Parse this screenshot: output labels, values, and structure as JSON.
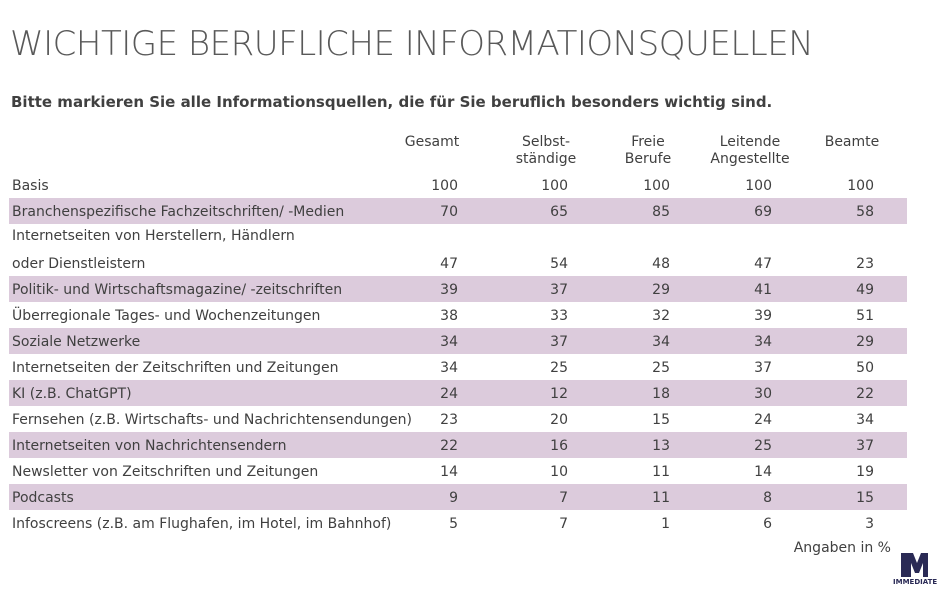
{
  "title": "WICHTIGE BERUFLICHE INFORMATIONSQUELLEN",
  "subtitle": "Bitte markieren Sie alle Informationsquellen, die für Sie beruflich besonders wichtig sind.",
  "footnote": "Angaben in %",
  "logo_text": "IMMEDIATE",
  "colors": {
    "shaded_row": "#dccbdc",
    "text": "#404040",
    "logo": "#2a2a55"
  },
  "chart_data": {
    "type": "table",
    "columns": [
      "Gesamt",
      "Selbst-\nständige",
      "Freie\nBerufe",
      "Leitende\nAngestellte",
      "Beamte"
    ],
    "rows": [
      {
        "label": "Basis",
        "values": [
          100,
          100,
          100,
          100,
          100
        ],
        "shaded": false
      },
      {
        "label": "Branchenspezifische Fachzeitschriften/ -Medien",
        "values": [
          70,
          65,
          85,
          69,
          58
        ],
        "shaded": true
      },
      {
        "label": "oder Dienstleistern",
        "label_line1": "Internetseiten von Herstellern, Händlern",
        "values": [
          47,
          54,
          48,
          47,
          23
        ],
        "shaded": false
      },
      {
        "label": "Politik- und Wirtschaftsmagazine/ -zeitschriften",
        "values": [
          39,
          37,
          29,
          41,
          49
        ],
        "shaded": true
      },
      {
        "label": "Überregionale Tages- und Wochenzeitungen",
        "values": [
          38,
          33,
          32,
          39,
          51
        ],
        "shaded": false
      },
      {
        "label": "Soziale Netzwerke",
        "values": [
          34,
          37,
          34,
          34,
          29
        ],
        "shaded": true
      },
      {
        "label": "Internetseiten der Zeitschriften und Zeitungen",
        "values": [
          34,
          25,
          25,
          37,
          50
        ],
        "shaded": false
      },
      {
        "label": "KI (z.B. ChatGPT)",
        "values": [
          24,
          12,
          18,
          30,
          22
        ],
        "shaded": true
      },
      {
        "label": "Fernsehen (z.B. Wirtschafts- und Nachrichtensendungen)",
        "values": [
          23,
          20,
          15,
          24,
          34
        ],
        "shaded": false
      },
      {
        "label": "Internetseiten von Nachrichtensendern",
        "values": [
          22,
          16,
          13,
          25,
          37
        ],
        "shaded": true
      },
      {
        "label": "Newsletter von Zeitschriften und Zeitungen",
        "values": [
          14,
          10,
          11,
          14,
          19
        ],
        "shaded": false
      },
      {
        "label": "Podcasts",
        "values": [
          9,
          7,
          11,
          8,
          15
        ],
        "shaded": true
      },
      {
        "label": "Infoscreens (z.B. am Flughafen, im Hotel, im Bahnhof)",
        "values": [
          5,
          7,
          1,
          6,
          3
        ],
        "shaded": false
      }
    ]
  }
}
